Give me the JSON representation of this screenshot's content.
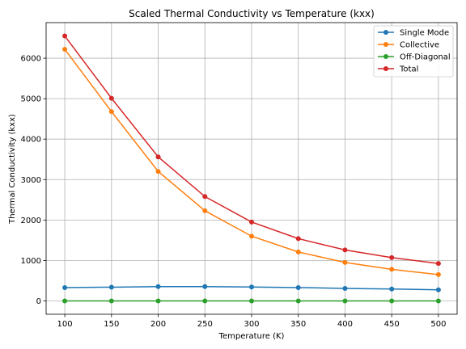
{
  "chart_data": {
    "type": "line",
    "title": "Scaled Thermal Conductivity vs Temperature (kxx)",
    "xlabel": "Temperature (K)",
    "ylabel": "Thermal Conductivity (kxx)",
    "x": [
      100,
      150,
      200,
      250,
      300,
      350,
      400,
      450,
      500
    ],
    "xlim": [
      80,
      520
    ],
    "ylim": [
      -330,
      6880
    ],
    "xticks": [
      100,
      150,
      200,
      250,
      300,
      350,
      400,
      450,
      500
    ],
    "yticks": [
      0,
      1000,
      2000,
      3000,
      4000,
      5000,
      6000
    ],
    "grid": true,
    "legend_position": "upper-right",
    "series": [
      {
        "name": "Single Mode",
        "color": "#1f77b4",
        "values": [
          330,
          340,
          355,
          355,
          345,
          330,
          310,
          295,
          275
        ]
      },
      {
        "name": "Collective",
        "color": "#ff7f0e",
        "values": [
          6220,
          4680,
          3200,
          2230,
          1600,
          1210,
          950,
          780,
          650
        ]
      },
      {
        "name": "Off-Diagonal",
        "color": "#2ca02c",
        "values": [
          0,
          0,
          0,
          0,
          0,
          0,
          0,
          0,
          0
        ]
      },
      {
        "name": "Total",
        "color": "#d62728",
        "values": [
          6550,
          5010,
          3560,
          2580,
          1950,
          1540,
          1260,
          1070,
          925
        ]
      }
    ]
  }
}
